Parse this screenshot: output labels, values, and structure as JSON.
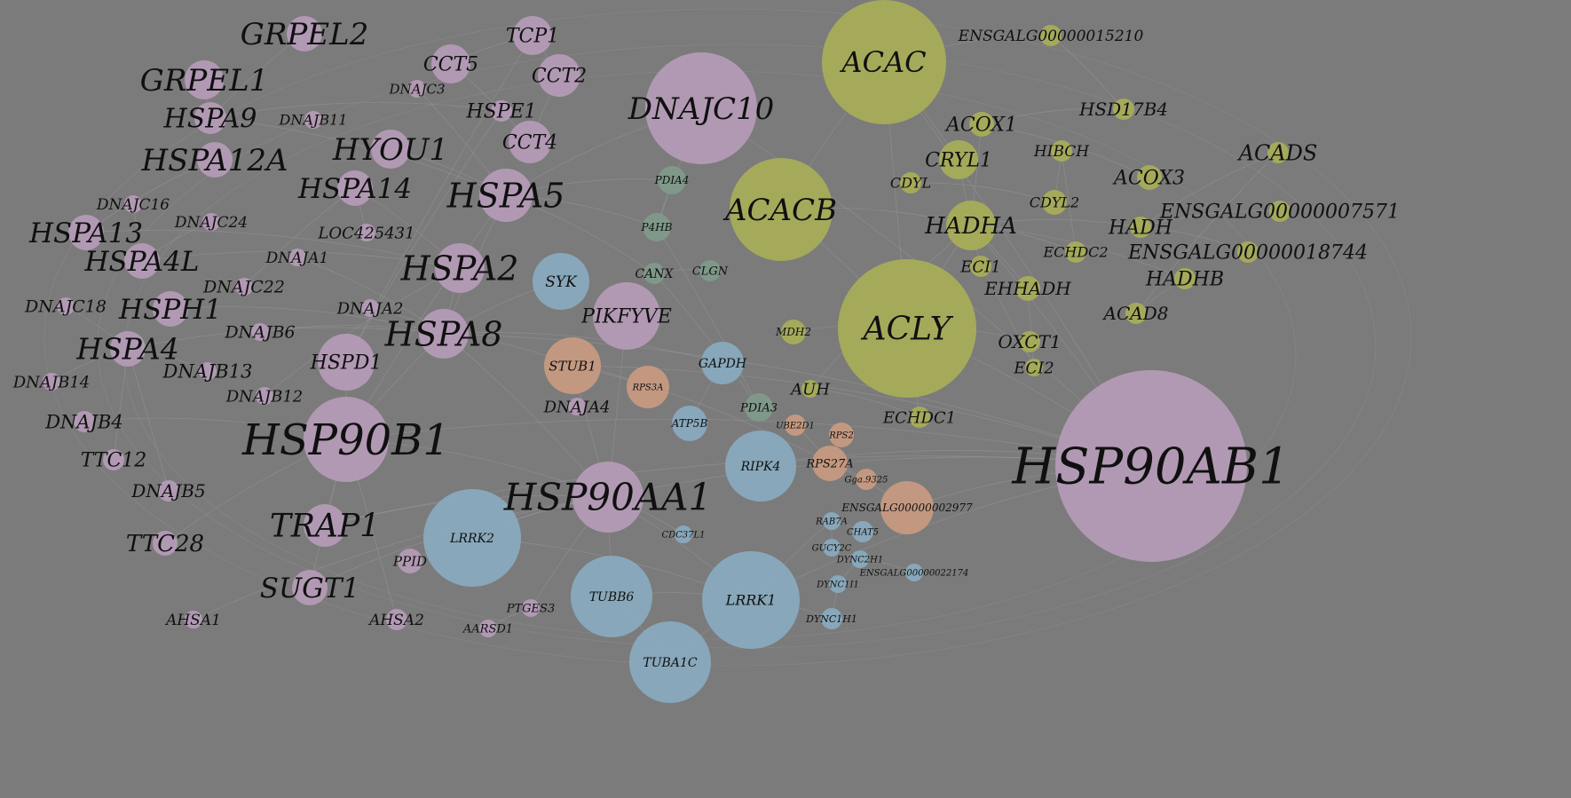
{
  "network": {
    "colors": {
      "background": "#7b7b7b",
      "purple": "#b59bb7",
      "green": "#a8ae58",
      "blue": "#89aabf",
      "orange": "#c99a80",
      "teal": "#7f9a8a",
      "edge": "#a3a3a3",
      "label": "#101010"
    },
    "nodes": [
      {
        "label": "GRPEL2",
        "group": "purple"
      },
      {
        "label": "TCP1",
        "group": "purple"
      },
      {
        "label": "CCT5",
        "group": "purple"
      },
      {
        "label": "CCT2",
        "group": "purple"
      },
      {
        "label": "DNAJC3",
        "group": "purple"
      },
      {
        "label": "GRPEL1",
        "group": "purple"
      },
      {
        "label": "HSPA9",
        "group": "purple"
      },
      {
        "label": "DNAJB11",
        "group": "purple"
      },
      {
        "label": "HSPE1",
        "group": "purple"
      },
      {
        "label": "CCT4",
        "group": "purple"
      },
      {
        "label": "HYOU1",
        "group": "purple"
      },
      {
        "label": "HSPA12A",
        "group": "purple"
      },
      {
        "label": "HSPA14",
        "group": "purple"
      },
      {
        "label": "HSPA5",
        "group": "purple"
      },
      {
        "label": "DNAJC16",
        "group": "purple"
      },
      {
        "label": "DNAJC24",
        "group": "purple"
      },
      {
        "label": "HSPA13",
        "group": "purple"
      },
      {
        "label": "LOC425431",
        "group": "purple"
      },
      {
        "label": "HSPA4L",
        "group": "purple"
      },
      {
        "label": "DNAJA1",
        "group": "purple"
      },
      {
        "label": "HSPA2",
        "group": "purple"
      },
      {
        "label": "DNAJC22",
        "group": "purple"
      },
      {
        "label": "DNAJC18",
        "group": "purple"
      },
      {
        "label": "HSPH1",
        "group": "purple"
      },
      {
        "label": "DNAJA2",
        "group": "purple"
      },
      {
        "label": "DNAJB6",
        "group": "purple"
      },
      {
        "label": "HSPA8",
        "group": "purple"
      },
      {
        "label": "HSPA4",
        "group": "purple"
      },
      {
        "label": "HSPD1",
        "group": "purple"
      },
      {
        "label": "DNAJB13",
        "group": "purple"
      },
      {
        "label": "DNAJB14",
        "group": "purple"
      },
      {
        "label": "DNAJB12",
        "group": "purple"
      },
      {
        "label": "DNAJB4",
        "group": "purple"
      },
      {
        "label": "HSP90B1",
        "group": "purple"
      },
      {
        "label": "TTC12",
        "group": "purple"
      },
      {
        "label": "DNAJB5",
        "group": "purple"
      },
      {
        "label": "TRAP1",
        "group": "purple"
      },
      {
        "label": "TTC28",
        "group": "purple"
      },
      {
        "label": "PPID",
        "group": "purple"
      },
      {
        "label": "SUGT1",
        "group": "purple"
      },
      {
        "label": "AHSA1",
        "group": "purple"
      },
      {
        "label": "AHSA2",
        "group": "purple"
      },
      {
        "label": "PTGES3",
        "group": "purple"
      },
      {
        "label": "AARSD1",
        "group": "purple"
      },
      {
        "label": "DNAJC10",
        "group": "purple"
      },
      {
        "label": "PIKFYVE",
        "group": "purple"
      },
      {
        "label": "DNAJA4",
        "group": "purple"
      },
      {
        "label": "HSP90AA1",
        "group": "purple"
      },
      {
        "label": "HSP90AB1",
        "group": "purple"
      },
      {
        "label": "PDIA4",
        "group": "teal"
      },
      {
        "label": "P4HB",
        "group": "teal"
      },
      {
        "label": "CANX",
        "group": "teal"
      },
      {
        "label": "CLGN",
        "group": "teal"
      },
      {
        "label": "PDIA3",
        "group": "teal"
      },
      {
        "label": "SYK",
        "group": "blue"
      },
      {
        "label": "GAPDH",
        "group": "blue"
      },
      {
        "label": "ATP5B",
        "group": "blue"
      },
      {
        "label": "RIPK4",
        "group": "blue"
      },
      {
        "label": "LRRK2",
        "group": "blue"
      },
      {
        "label": "TUBB6",
        "group": "blue"
      },
      {
        "label": "LRRK1",
        "group": "blue"
      },
      {
        "label": "TUBA1C",
        "group": "blue"
      },
      {
        "label": "CDC37L1",
        "group": "blue"
      },
      {
        "label": "RAB7A",
        "group": "blue"
      },
      {
        "label": "CHAT5",
        "group": "blue"
      },
      {
        "label": "GUCY2C",
        "group": "blue"
      },
      {
        "label": "DYNC2H1",
        "group": "blue"
      },
      {
        "label": "DYNC1I1",
        "group": "blue"
      },
      {
        "label": "DYNC1H1",
        "group": "blue"
      },
      {
        "label": "ENSGALG00000022174",
        "group": "blue"
      },
      {
        "label": "STUB1",
        "group": "orange"
      },
      {
        "label": "RPS3A",
        "group": "orange"
      },
      {
        "label": "RPS27A",
        "group": "orange"
      },
      {
        "label": "RPS2",
        "group": "orange"
      },
      {
        "label": "UBE2D1",
        "group": "orange"
      },
      {
        "label": "ENSGALG00000002977",
        "group": "orange"
      },
      {
        "label": "Gga.9325",
        "group": "orange"
      },
      {
        "label": "ACAC",
        "group": "green"
      },
      {
        "label": "ENSGALG00000015210",
        "group": "green"
      },
      {
        "label": "HSD17B4",
        "group": "green"
      },
      {
        "label": "ACOX1",
        "group": "green"
      },
      {
        "label": "HIBCH",
        "group": "green"
      },
      {
        "label": "ACADS",
        "group": "green"
      },
      {
        "label": "CRYL1",
        "group": "green"
      },
      {
        "label": "ACOX3",
        "group": "green"
      },
      {
        "label": "CDYL",
        "group": "green"
      },
      {
        "label": "ACACB",
        "group": "green"
      },
      {
        "label": "CDYL2",
        "group": "green"
      },
      {
        "label": "ENSGALG00000007571",
        "group": "green"
      },
      {
        "label": "HADHA",
        "group": "green"
      },
      {
        "label": "HADH",
        "group": "green"
      },
      {
        "label": "ECHDC2",
        "group": "green"
      },
      {
        "label": "ENSGALG00000018744",
        "group": "green"
      },
      {
        "label": "ECI1",
        "group": "green"
      },
      {
        "label": "EHHADH",
        "group": "green"
      },
      {
        "label": "HADHB",
        "group": "green"
      },
      {
        "label": "ACAD8",
        "group": "green"
      },
      {
        "label": "ACLY",
        "group": "green"
      },
      {
        "label": "OXCT1",
        "group": "green"
      },
      {
        "label": "ECI2",
        "group": "green"
      },
      {
        "label": "MDH2",
        "group": "green"
      },
      {
        "label": "AUH",
        "group": "green"
      },
      {
        "label": "ECHDC1",
        "group": "green"
      }
    ]
  }
}
